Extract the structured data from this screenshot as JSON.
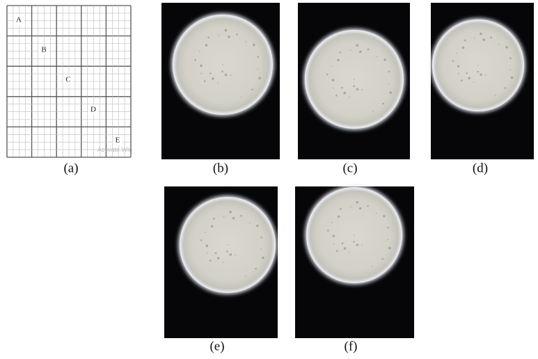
{
  "grid": {
    "letters": [
      "A",
      "B",
      "C",
      "D",
      "E"
    ],
    "watermark": "Activate Win"
  },
  "panels": [
    {
      "label": "(a)"
    },
    {
      "label": "(b)"
    },
    {
      "label": "(c)"
    },
    {
      "label": "(d)"
    },
    {
      "label": "(e)"
    },
    {
      "label": "(f)"
    }
  ]
}
